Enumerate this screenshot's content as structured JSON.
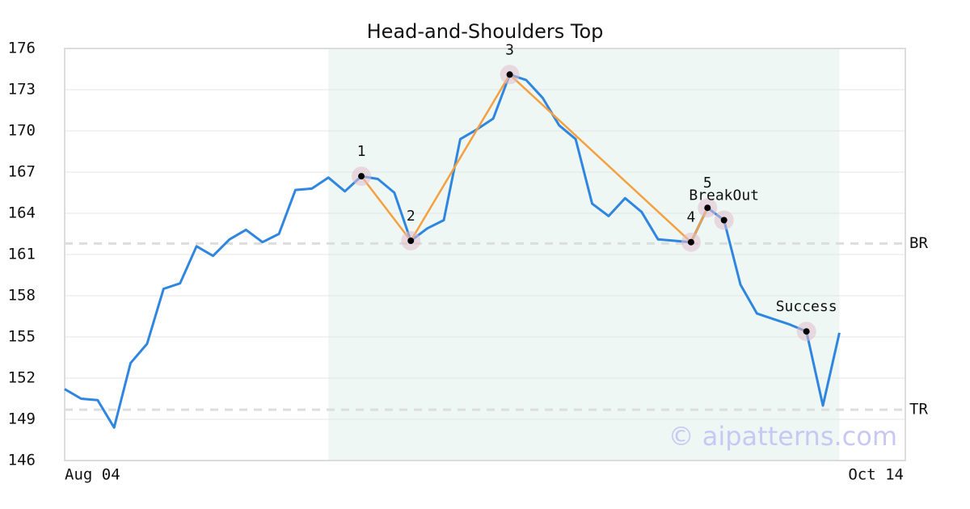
{
  "chart_data": {
    "type": "line",
    "title": "Head-and-Shoulders Top",
    "x_start_label": "Aug 04",
    "x_end_label": "Oct 14",
    "xlim": [
      0,
      51
    ],
    "values": [
      151.2,
      150.5,
      150.4,
      148.4,
      153.1,
      154.5,
      158.5,
      158.9,
      161.6,
      160.9,
      162.1,
      162.8,
      161.9,
      162.5,
      165.7,
      165.8,
      166.6,
      165.6,
      166.7,
      166.5,
      165.5,
      162.0,
      162.9,
      163.5,
      169.4,
      170.1,
      170.9,
      174.1,
      173.7,
      172.4,
      170.4,
      169.4,
      164.7,
      163.8,
      165.1,
      164.1,
      162.1,
      162.0,
      161.9,
      164.4,
      163.5,
      158.8,
      156.7,
      156.3,
      155.9,
      155.4,
      150.0,
      155.3
    ],
    "color": "#2f86e0",
    "shade_range": [
      16,
      47
    ],
    "shade_color": "#eef7f3",
    "pattern_color": "#f4a040",
    "pattern": [
      {
        "index": 18,
        "value": 166.7,
        "label": "1"
      },
      {
        "index": 21,
        "value": 162.0,
        "label": "2"
      },
      {
        "index": 27,
        "value": 174.1,
        "label": "3"
      },
      {
        "index": 38,
        "value": 161.9,
        "label": "4"
      },
      {
        "index": 39,
        "value": 164.4,
        "label": "5"
      }
    ],
    "events": [
      {
        "index": 40,
        "value": 163.5,
        "label": "BreakOut"
      },
      {
        "index": 45,
        "value": 155.4,
        "label": "Success"
      }
    ],
    "hlines": [
      {
        "value": 161.8,
        "label": "BR"
      },
      {
        "value": 149.7,
        "label": "TR"
      }
    ],
    "ylim": [
      146,
      176
    ],
    "yticks": [
      146,
      149,
      152,
      155,
      158,
      161,
      164,
      167,
      170,
      173,
      176
    ],
    "grid": true,
    "watermark": "© aipatterns.com"
  }
}
